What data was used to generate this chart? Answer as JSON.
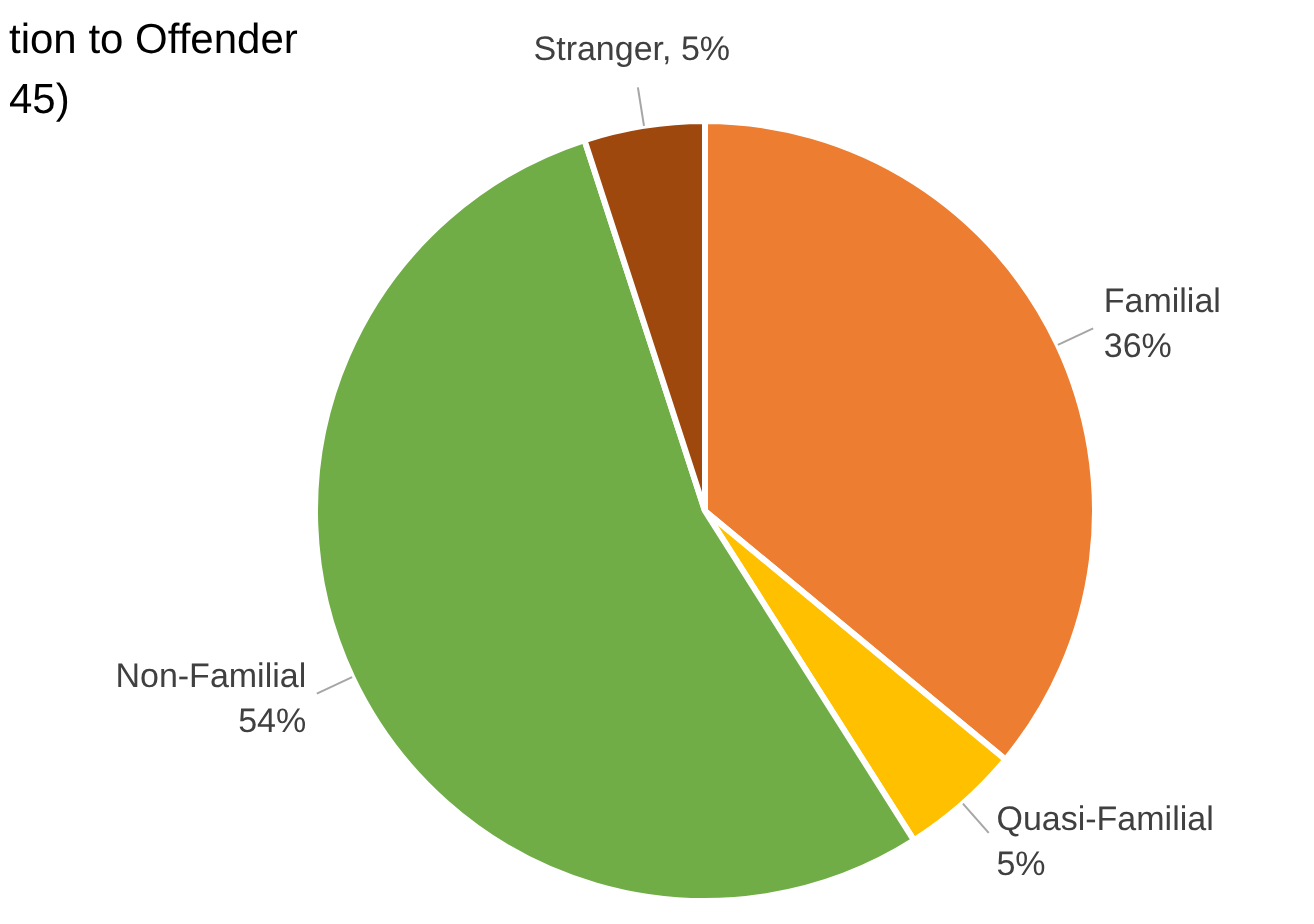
{
  "chart_data": {
    "type": "pie",
    "title": "tion to Offender\n45)",
    "categories": [
      "Familial",
      "Quasi-Familial",
      "Non-Familial",
      "Stranger"
    ],
    "values": [
      36,
      5,
      54,
      5
    ],
    "value_labels": [
      "36%",
      "5%",
      "54%",
      "5%"
    ],
    "colors": [
      "#ed7d31",
      "#ffc000",
      "#70ad47",
      "#9e480e"
    ],
    "legend": false
  }
}
